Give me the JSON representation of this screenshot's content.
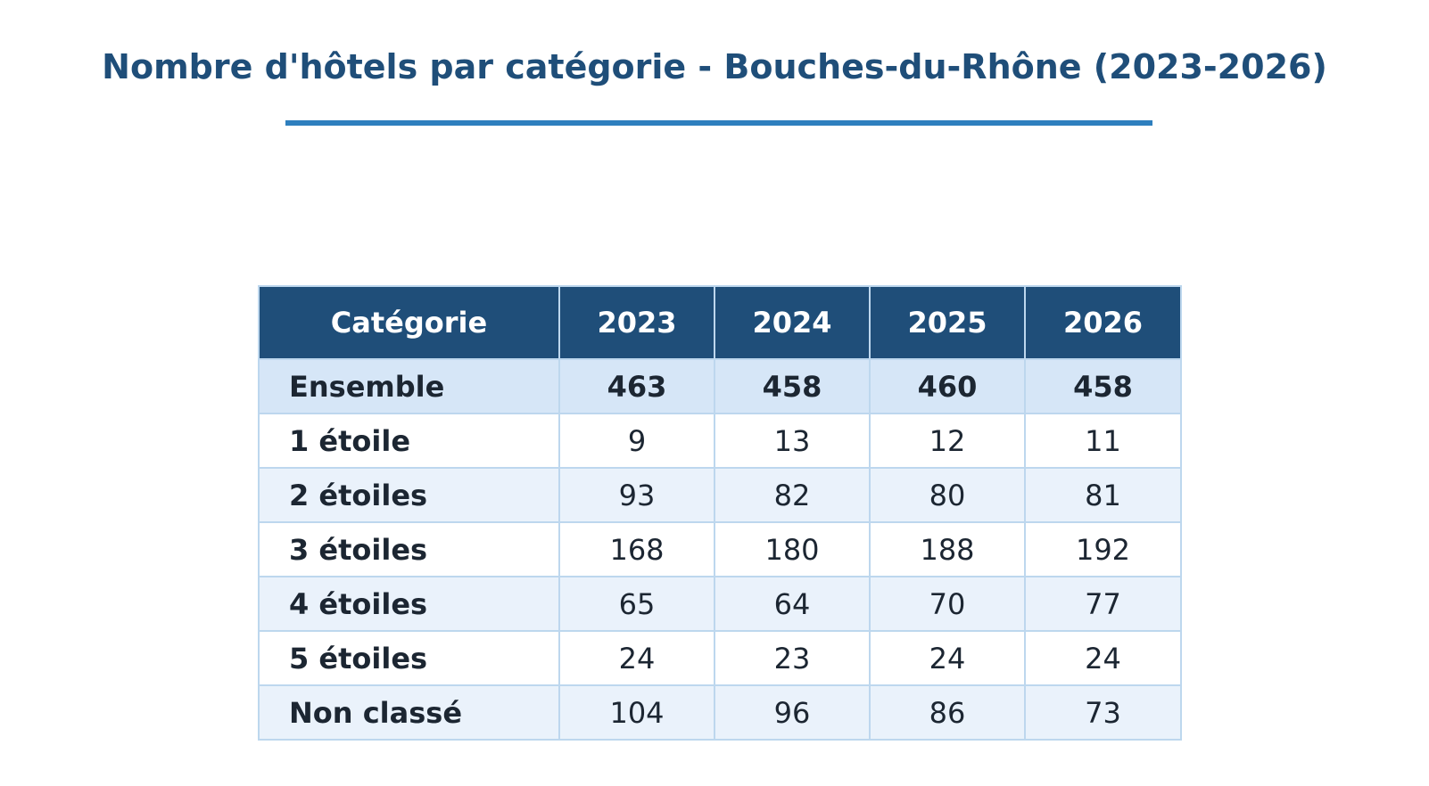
{
  "chart_data": {
    "type": "table",
    "title": "Nombre d'hôtels par catégorie - Bouches-du-Rhône (2023-2026)",
    "columns": [
      "Catégorie",
      "2023",
      "2024",
      "2025",
      "2026"
    ],
    "rows": [
      {
        "category": "Ensemble",
        "values": [
          "463",
          "458",
          "460",
          "458"
        ],
        "emphasis": true
      },
      {
        "category": "1 étoile",
        "values": [
          "9",
          "13",
          "12",
          "11"
        ]
      },
      {
        "category": "2 étoiles",
        "values": [
          "93",
          "82",
          "80",
          "81"
        ]
      },
      {
        "category": "3 étoiles",
        "values": [
          "168",
          "180",
          "188",
          "192"
        ]
      },
      {
        "category": "4 étoiles",
        "values": [
          "65",
          "64",
          "70",
          "77"
        ]
      },
      {
        "category": "5 étoiles",
        "values": [
          "24",
          "23",
          "24",
          "24"
        ]
      },
      {
        "category": "Non classé",
        "values": [
          "104",
          "96",
          "86",
          "73"
        ]
      }
    ],
    "colors": {
      "title": "#1f4e79",
      "title_rule": "#2e7fbe",
      "header_background": "#1f4e79",
      "header_text": "#ffffff",
      "total_row_background": "#d6e6f7",
      "alt_row_background": "#eaf2fb",
      "row_background": "#ffffff",
      "border": "#bdd7ee",
      "cell_text": "#1c2632"
    }
  }
}
